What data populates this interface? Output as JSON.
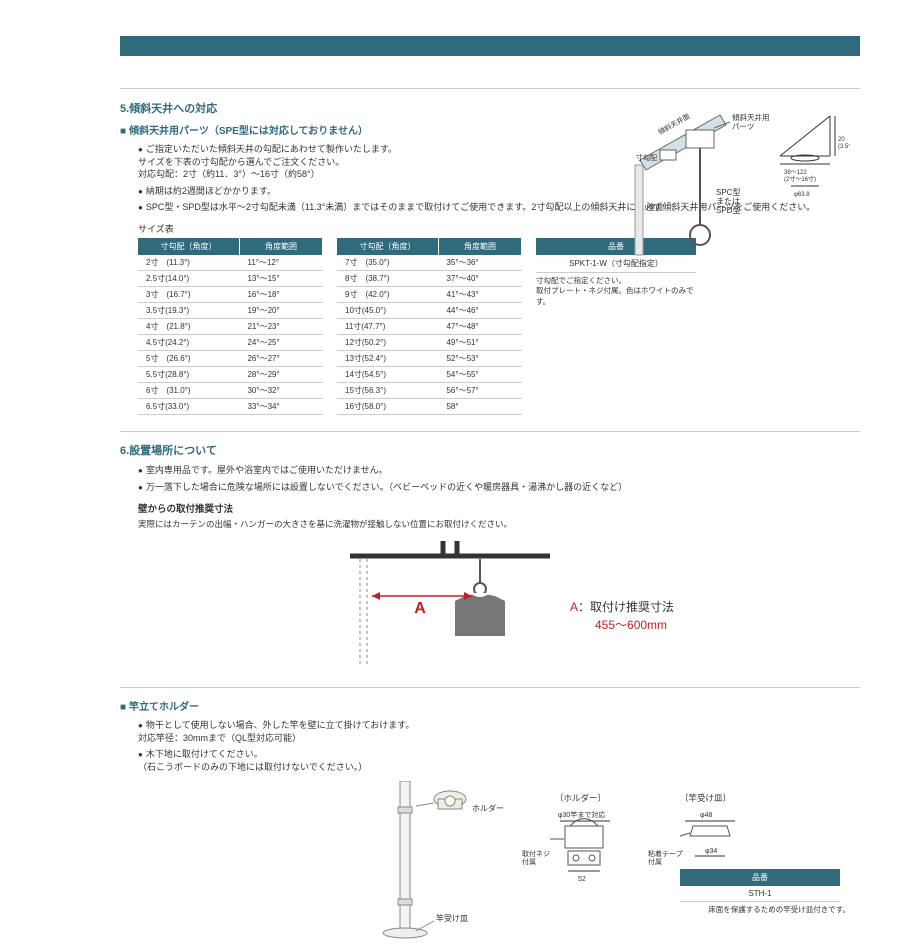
{
  "colors": {
    "teal": "#2f6a7d",
    "text": "#333",
    "grid": "#ccc",
    "red": "#c02020",
    "white": "#ffffff"
  },
  "section5": {
    "heading": "5.傾斜天井への対応",
    "subheading": "傾斜天井用パーツ（SPE型には対応しておりません）",
    "bullets": [
      "ご指定いただいた傾斜天井の勾配にあわせて製作いたします。\nサイズを下表の寸勾配から選んでご注文ください。\n対応勾配：2寸（約11．3°）〜16寸（約58°）",
      "納期は約2週間ほどかかります。",
      "SPC型・SPD型は水平〜2寸勾配未満（11.3°未満）まではそのままで取付けてご使用できます。2寸勾配以上の傾斜天井には必ず傾斜天井用パーツをご使用ください。"
    ],
    "sizeLabel": "サイズ表",
    "tableHeaders": [
      "寸勾配（角度）",
      "角度範囲"
    ],
    "table1": [
      [
        "2寸　(11.3°)",
        "11°〜12°"
      ],
      [
        "2.5寸(14.0°)",
        "13°〜15°"
      ],
      [
        "3寸　(16.7°)",
        "16°〜18°"
      ],
      [
        "3.5寸(19.3°)",
        "19°〜20°"
      ],
      [
        "4寸　(21.8°)",
        "21°〜23°"
      ],
      [
        "4.5寸(24.2°)",
        "24°〜25°"
      ],
      [
        "5寸　(26.6°)",
        "26°〜27°"
      ],
      [
        "5.5寸(28.8°)",
        "28°〜29°"
      ],
      [
        "6寸　(31.0°)",
        "30°〜32°"
      ],
      [
        "6.5寸(33.0°)",
        "33°〜34°"
      ]
    ],
    "table2": [
      [
        "7寸　(35.0°)",
        "35°〜36°"
      ],
      [
        "8寸　(38.7°)",
        "37°〜40°"
      ],
      [
        "9寸　(42.0°)",
        "41°〜43°"
      ],
      [
        "10寸(45.0°)",
        "44°〜46°"
      ],
      [
        "11寸(47.7°)",
        "47°〜48°"
      ],
      [
        "12寸(50.2°)",
        "49°〜51°"
      ],
      [
        "13寸(52.4°)",
        "52°〜53°"
      ],
      [
        "14寸(54.5°)",
        "54°〜55°"
      ],
      [
        "15寸(56.3°)",
        "56°〜57°"
      ],
      [
        "16寸(58.0°)",
        "58°"
      ]
    ],
    "partHeader": "品番",
    "partNumber": "SPKT-1-W（寸勾配指定）",
    "partNote": "寸勾配でご指定ください。\n取付プレート・ネジ付属。色はホワイトのみです。",
    "diagram": {
      "labels": {
        "ceiling": "傾斜天井面",
        "part": "傾斜天井用\nパーツ",
        "angle": "寸勾配",
        "wall": "壁面",
        "type": "SPC型\nまたは\nSPD型",
        "dimH": "20\n(3.5寸以下は26)",
        "dimW": "38〜122\n(2寸〜16寸)",
        "phi": "φ63.8"
      }
    }
  },
  "section6": {
    "heading": "6.設置場所について",
    "bullets": [
      "室内専用品です。屋外や浴室内ではご使用いただけません。",
      "万一落下した場合に危険な場所には設置しないでください。（ベビーベッドの近くや暖房器具・湯沸かし器の近くなど）"
    ],
    "wallTitle": "壁からの取付推奨寸法",
    "wallDesc": "実際にはカーテンの出幅・ハンガーの大きさを基に洗濯物が接触しない位置にお取付けください。",
    "diagram": {
      "A": "A",
      "recLabel": "A：取付け推奨寸法",
      "recValue": "455〜600mm"
    }
  },
  "section7": {
    "subheading": "竿立てホルダー",
    "bullets": [
      "物干として使用しない場合、外した竿を壁に立て掛けておけます。\n対応竿径：30mmまで（QL型対応可能）",
      "木下地に取付けてください。\n（石こうボードのみの下地には取付けないでください。）"
    ],
    "diagram": {
      "holder": "ホルダー",
      "tray": "竿受け皿",
      "holderLabel": "〔ホルダー〕",
      "trayLabel": "〔竿受け皿〕",
      "phi30": "φ30竿まで対応",
      "screwNote": "取付ネジ\n付属",
      "w52": "52",
      "phi48": "φ48",
      "phi34": "φ34",
      "tapeNote": "粘着テープ\n付属"
    },
    "partHeader": "品番",
    "partNumber": "STH-1",
    "partNote": "床面を保護するための竿受け皿付きです。"
  }
}
